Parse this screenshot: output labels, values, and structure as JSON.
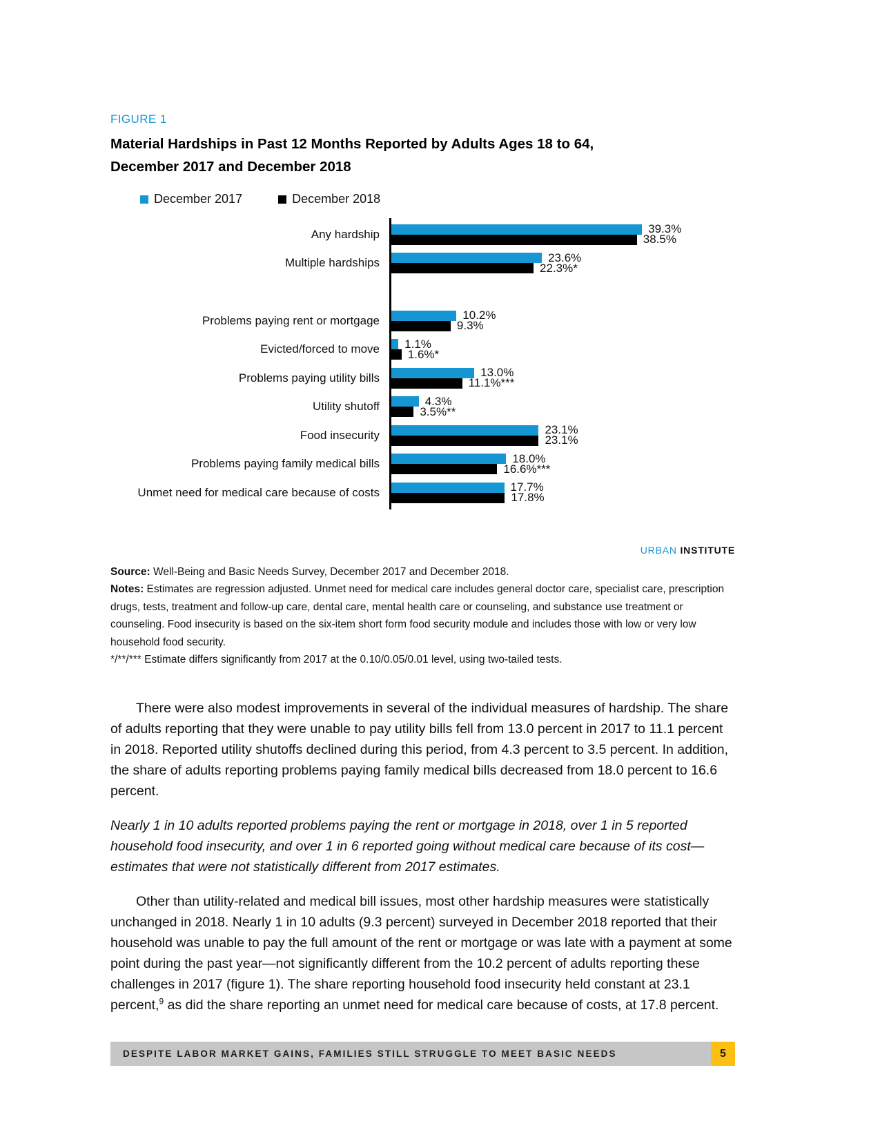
{
  "figure": {
    "label": "FIGURE 1",
    "title_line1": "Material Hardships in Past 12 Months Reported by Adults Ages 18 to 64,",
    "title_line2": "December 2017 and December 2018"
  },
  "chart_data": {
    "type": "bar",
    "orientation": "horizontal",
    "xlim": [
      0,
      40
    ],
    "grid": false,
    "legend_position": "top-left",
    "categories": [
      "Any hardship",
      "Multiple hardships",
      "Problems paying rent or mortgage",
      "Evicted/forced to move",
      "Problems paying utility bills",
      "Utility shutoff",
      "Food insecurity",
      "Problems paying family medical bills",
      "Unmet need for medical care because of costs"
    ],
    "group_break_after_index": 1,
    "series_names": [
      "December 2017",
      "December 2018"
    ],
    "series_colors": [
      "#1696d2",
      "#000000"
    ],
    "series": [
      {
        "name": "December 2017",
        "values": [
          39.3,
          23.6,
          10.2,
          1.1,
          13.0,
          4.3,
          23.1,
          18.0,
          17.7
        ],
        "labels": [
          "39.3%",
          "23.6%",
          "10.2%",
          "1.1%",
          "13.0%",
          "4.3%",
          "23.1%",
          "18.0%",
          "17.7%"
        ]
      },
      {
        "name": "December 2018",
        "values": [
          38.5,
          22.3,
          9.3,
          1.6,
          11.1,
          3.5,
          23.1,
          16.6,
          17.8
        ],
        "labels": [
          "38.5%",
          "22.3%*",
          "9.3%",
          "1.6%*",
          "11.1%***",
          "3.5%**",
          "23.1%",
          "16.6%***",
          "17.8%"
        ]
      }
    ]
  },
  "branding": {
    "urban": "URBAN",
    "institute": "INSTITUTE",
    "urban_color": "#1696d2"
  },
  "notes": {
    "source_label": "Source:",
    "source_text": " Well-Being and Basic Needs Survey, December 2017 and December 2018.",
    "notes_label": "Notes:",
    "notes_text": " Estimates are regression adjusted. Unmet need for medical care includes general doctor care, specialist care, prescription drugs, tests, treatment and follow-up care, dental care, mental health care or counseling, and substance use treatment or counseling. Food insecurity is based on the six-item short form food security module and includes those with low or very low household food security.",
    "significance_text": "*/**/*** Estimate differs significantly from 2017 at the 0.10/0.05/0.01 level, using two-tailed tests."
  },
  "body": {
    "p1": "There were also modest improvements in several of the individual measures of hardship. The share of adults reporting that they were unable to pay utility bills fell from 13.0 percent in 2017 to 11.1 percent in 2018. Reported utility shutoffs declined during this period, from 4.3 percent to 3.5 percent. In addition, the share of adults reporting problems paying family medical bills decreased from 18.0 percent to 16.6 percent.",
    "p2_italic": "Nearly 1 in 10 adults reported problems paying the rent or mortgage in 2018, over 1 in 5 reported household food insecurity, and over 1 in 6 reported going without medical care because of its cost—estimates that were not statistically different from 2017 estimates.",
    "p3_before_sup": "Other than utility-related and medical bill issues, most other hardship measures were statistically unchanged in 2018. Nearly 1 in 10 adults (9.3 percent) surveyed in December 2018 reported that their household was unable to pay the full amount of the rent or mortgage or was late with a payment at some point during the past year—not significantly different from the 10.2 percent of adults reporting these challenges in 2017 (figure 1). The share reporting household food insecurity held constant at 23.1 percent,",
    "p3_sup": "9",
    "p3_after_sup": " as did the share reporting an unmet need for medical care because of costs, at 17.8 percent."
  },
  "footer": {
    "text": "DESPITE LABOR MARKET GAINS, FAMILIES STILL STRUGGLE TO MEET BASIC NEEDS",
    "page_number": "5",
    "bar_color": "#c6c6c6",
    "page_box_color": "#fdbf11"
  },
  "colors": {
    "accent_blue": "#1696d2",
    "bar_2017": "#1696d2",
    "bar_2018": "#000000",
    "figure_label": "#1696d2"
  }
}
